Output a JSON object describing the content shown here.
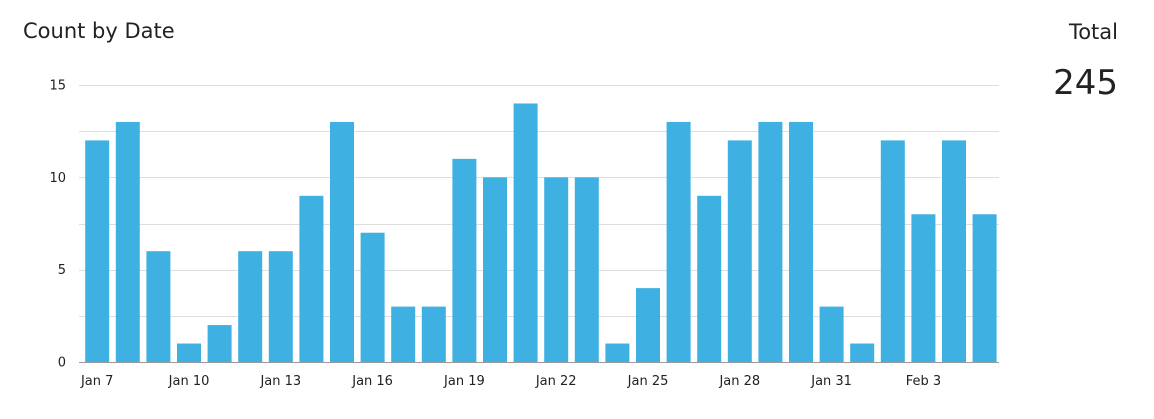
{
  "chart_data": {
    "type": "bar",
    "title": "Count by Date",
    "xlabel": "",
    "ylabel": "",
    "ylim": [
      0,
      15
    ],
    "yticks": [
      0,
      5,
      10,
      15
    ],
    "grid": true,
    "color": "#3eb1e2",
    "categories": [
      "Jan 7",
      "Jan 8",
      "Jan 9",
      "Jan 10",
      "Jan 11",
      "Jan 12",
      "Jan 13",
      "Jan 14",
      "Jan 15",
      "Jan 16",
      "Jan 17",
      "Jan 18",
      "Jan 19",
      "Jan 20",
      "Jan 21",
      "Jan 22",
      "Jan 23",
      "Jan 24",
      "Jan 25",
      "Jan 26",
      "Jan 27",
      "Jan 28",
      "Jan 29",
      "Jan 30",
      "Jan 31",
      "Feb 1",
      "Feb 2",
      "Feb 3",
      "Feb 4",
      "Feb 5"
    ],
    "values": [
      12,
      13,
      6,
      1,
      2,
      6,
      6,
      9,
      13,
      7,
      3,
      3,
      11,
      10,
      14,
      10,
      10,
      1,
      4,
      13,
      9,
      12,
      13,
      13,
      3,
      1,
      12,
      8,
      12,
      8
    ],
    "xtick_labels": [
      "Jan 7",
      "Jan 10",
      "Jan 13",
      "Jan 16",
      "Jan 19",
      "Jan 22",
      "Jan 25",
      "Jan 28",
      "Jan 31",
      "Feb 3"
    ]
  },
  "summary": {
    "total_label": "Total",
    "total_value": "245"
  }
}
